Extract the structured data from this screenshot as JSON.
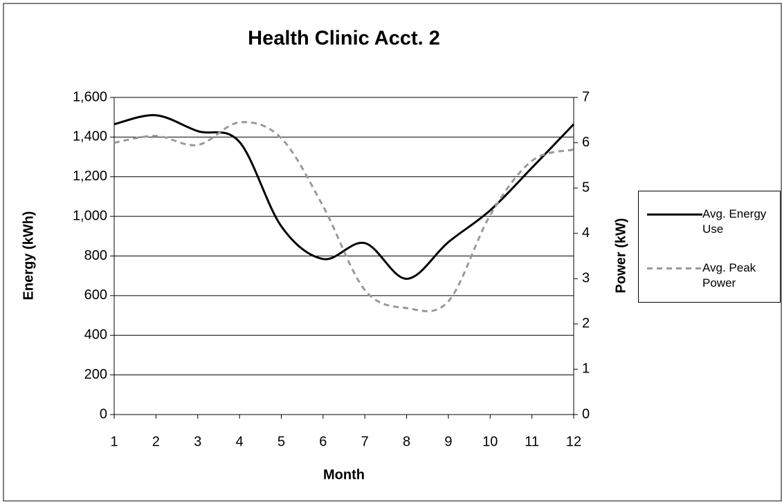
{
  "chart_data": {
    "type": "line",
    "title": "Health Clinic Acct. 2",
    "x_label": "Month",
    "y_label": "Energy (kWh)",
    "y2_label": "Power (kW)",
    "x": [
      1,
      2,
      3,
      4,
      5,
      6,
      7,
      8,
      9,
      10,
      11,
      12
    ],
    "xlim": [
      1,
      12
    ],
    "xticks": [
      1,
      2,
      3,
      4,
      5,
      6,
      7,
      8,
      9,
      10,
      11,
      12
    ],
    "ylim": [
      0,
      1600
    ],
    "yticks": [
      0,
      {
        "value": 200,
        "label": "200"
      },
      400,
      600,
      800,
      {
        "value": 1000,
        "label": "1,000"
      },
      {
        "value": 1200,
        "label": "1,200"
      },
      {
        "value": 1400,
        "label": "1,400"
      },
      {
        "value": 1600,
        "label": "1,600"
      }
    ],
    "y2lim": [
      0,
      7
    ],
    "y2ticks": [
      0,
      1,
      2,
      3,
      4,
      5,
      6,
      7
    ],
    "grid": true,
    "legend": "right",
    "series": [
      {
        "name": "Avg. Energy Use",
        "color": "#000000",
        "dash": "solid",
        "values": [
          1465,
          1510,
          1430,
          1375,
          950,
          785,
          865,
          685,
          870,
          1030,
          1245,
          1465
        ]
      },
      {
        "name": "Avg. Peak Power",
        "color": "#999999",
        "dash": "dashed",
        "axis": "y2",
        "values": [
          6.0,
          6.15,
          5.95,
          6.45,
          6.1,
          4.6,
          2.75,
          2.35,
          2.5,
          4.4,
          5.6,
          5.85
        ]
      }
    ]
  }
}
